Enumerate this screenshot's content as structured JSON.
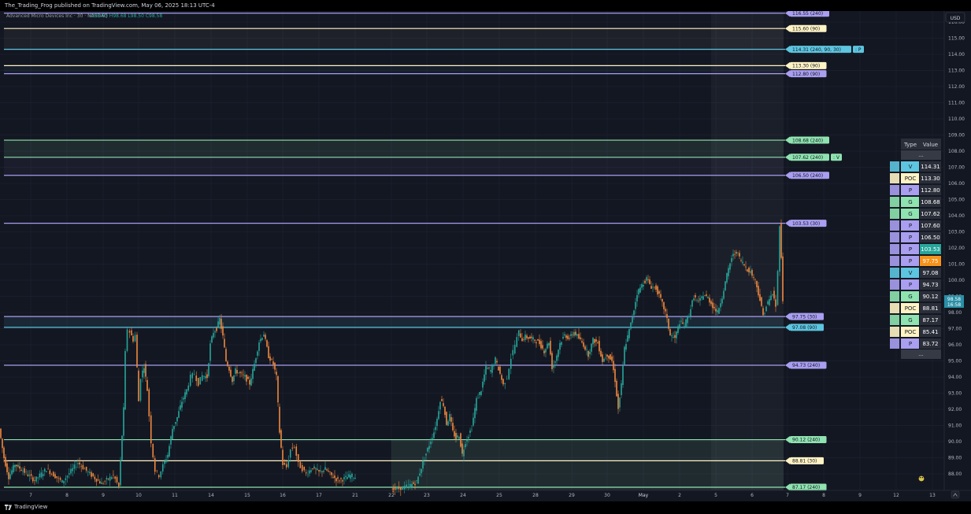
{
  "header": {
    "publish_text": "The_Trading_Frog published on TradingView.com, May 06, 2025 18:13 UTC-4",
    "symbol_line": "Advanced Micro Devices Inc · 30 · NASDAQ",
    "ohlc": "O98.65 H98.68 L98.50 C98.58"
  },
  "footer": {
    "brand": "TradingView"
  },
  "legend_table": {
    "header_type": "Type",
    "header_value": "Value",
    "ellipsis_top": "...",
    "ellipsis_bottom": "...",
    "rows": [
      {
        "type": "V",
        "value": "114.31",
        "color": "#5dc5e0"
      },
      {
        "type": "POC",
        "value": "113.30",
        "color": "#fff3c4"
      },
      {
        "type": "P",
        "value": "112.80",
        "color": "#a99ef0"
      },
      {
        "type": "G",
        "value": "108.68",
        "color": "#8fe3b0"
      },
      {
        "type": "G",
        "value": "107.62",
        "color": "#8fe3b0"
      },
      {
        "type": "P",
        "value": "107.60",
        "color": "#a99ef0"
      },
      {
        "type": "P",
        "value": "106.50",
        "color": "#a99ef0"
      },
      {
        "type": "P",
        "value": "103.53",
        "color": "#a99ef0",
        "value_bg": "#26a69a"
      },
      {
        "type": "P",
        "value": "97.75",
        "color": "#a99ef0",
        "value_bg": "#f7931a"
      },
      {
        "type": "V",
        "value": "97.08",
        "color": "#5dc5e0"
      },
      {
        "type": "P",
        "value": "94.73",
        "color": "#a99ef0"
      },
      {
        "type": "G",
        "value": "90.12",
        "color": "#8fe3b0"
      },
      {
        "type": "POC",
        "value": "88.81",
        "color": "#fff3c4"
      },
      {
        "type": "G",
        "value": "87.17",
        "color": "#8fe3b0"
      },
      {
        "type": "POC",
        "value": "85.41",
        "color": "#fff3c4"
      },
      {
        "type": "P",
        "value": "83.72",
        "color": "#a99ef0"
      }
    ]
  },
  "chart_data": {
    "type": "candlestick",
    "currency": "USD",
    "ylim": [
      87.0,
      116.6
    ],
    "y_ticks": [
      "88.00",
      "89.00",
      "90.00",
      "91.00",
      "92.00",
      "93.00",
      "94.00",
      "95.00",
      "96.00",
      "97.00",
      "98.00",
      "99.00",
      "100.00",
      "101.00",
      "102.00",
      "103.00",
      "104.00",
      "105.00",
      "106.00",
      "107.00",
      "108.00",
      "109.00",
      "110.00",
      "111.00",
      "112.00",
      "113.00",
      "114.00",
      "115.00",
      "116.00"
    ],
    "x_ticks": [
      "7",
      "8",
      "9",
      "10",
      "11",
      "14",
      "15",
      "16",
      "17",
      "21",
      "22",
      "23",
      "24",
      "25",
      "28",
      "29",
      "30",
      "May",
      "2",
      "5",
      "6",
      "7",
      "8",
      "9",
      "12",
      "13"
    ],
    "last_price": "98.58",
    "countdown": "16:58",
    "levels": [
      {
        "price": 116.55,
        "label": "116.55 (240)",
        "color": "#a99ef0"
      },
      {
        "price": 115.6,
        "label": "115.60 (90)",
        "color": "#fff3c4"
      },
      {
        "price": 114.31,
        "label": "114.31 (240, 90, 30)",
        "suffix": ": P",
        "color": "#5dc5e0"
      },
      {
        "price": 113.3,
        "label": "113.30 (90)",
        "color": "#fff3c4"
      },
      {
        "price": 112.8,
        "label": "112.80 (90)",
        "color": "#a99ef0"
      },
      {
        "price": 108.68,
        "label": "108.68 (240)",
        "color": "#8fe3b0"
      },
      {
        "price": 107.62,
        "label": "107.62 (240)",
        "suffix": ": V",
        "color": "#8fe3b0"
      },
      {
        "price": 106.5,
        "label": "106.50 (240)",
        "color": "#a99ef0"
      },
      {
        "price": 103.53,
        "label": "103.53 (30)",
        "color": "#a99ef0"
      },
      {
        "price": 97.75,
        "label": "97.75 (30)",
        "color": "#a99ef0"
      },
      {
        "price": 97.08,
        "label": "97.08 (90)",
        "color": "#5dc5e0"
      },
      {
        "price": 94.73,
        "label": "94.73 (240)",
        "color": "#a99ef0"
      },
      {
        "price": 90.12,
        "label": "90.12 (240)",
        "color": "#8fe3b0"
      },
      {
        "price": 88.81,
        "label": "88.81 (30)",
        "color": "#fff3c4"
      },
      {
        "price": 87.17,
        "label": "87.17 (240)",
        "color": "#8fe3b0"
      }
    ],
    "price_path": [
      [
        0,
        90.8
      ],
      [
        6,
        89.0
      ],
      [
        12,
        87.8
      ],
      [
        20,
        88.6
      ],
      [
        30,
        88.2
      ],
      [
        45,
        87.6
      ],
      [
        60,
        88.3
      ],
      [
        80,
        87.5
      ],
      [
        100,
        88.7
      ],
      [
        115,
        88.0
      ],
      [
        130,
        87.4
      ],
      [
        145,
        87.9
      ],
      [
        152,
        87.2
      ],
      [
        158,
        92.0
      ],
      [
        160,
        95.5
      ],
      [
        163,
        97.0
      ],
      [
        166,
        96.8
      ],
      [
        170,
        96.3
      ],
      [
        173,
        96.6
      ],
      [
        177,
        92.5
      ],
      [
        180,
        94.0
      ],
      [
        184,
        94.7
      ],
      [
        188,
        93.2
      ],
      [
        193,
        90.0
      ],
      [
        198,
        88.2
      ],
      [
        203,
        87.9
      ],
      [
        208,
        88.5
      ],
      [
        214,
        89.2
      ],
      [
        220,
        90.8
      ],
      [
        226,
        91.5
      ],
      [
        232,
        92.5
      ],
      [
        238,
        93.2
      ],
      [
        243,
        94.0
      ],
      [
        248,
        94.2
      ],
      [
        253,
        93.6
      ],
      [
        258,
        94.1
      ],
      [
        264,
        94.0
      ],
      [
        268,
        96.0
      ],
      [
        272,
        96.8
      ],
      [
        276,
        97.0
      ],
      [
        280,
        97.6
      ],
      [
        284,
        96.5
      ],
      [
        288,
        95.0
      ],
      [
        292,
        94.5
      ],
      [
        296,
        93.8
      ],
      [
        300,
        94.4
      ],
      [
        306,
        94.2
      ],
      [
        312,
        94.0
      ],
      [
        318,
        93.6
      ],
      [
        324,
        94.8
      ],
      [
        330,
        96.2
      ],
      [
        336,
        96.7
      ],
      [
        342,
        95.3
      ],
      [
        348,
        94.8
      ],
      [
        352,
        94.0
      ],
      [
        356,
        90.6
      ],
      [
        360,
        88.6
      ],
      [
        365,
        88.4
      ],
      [
        370,
        89.5
      ],
      [
        375,
        89.7
      ],
      [
        380,
        88.6
      ],
      [
        385,
        88.3
      ],
      [
        390,
        88.0
      ],
      [
        398,
        88.4
      ],
      [
        406,
        88.1
      ],
      [
        414,
        88.3
      ],
      [
        422,
        87.9
      ],
      [
        430,
        87.6
      ],
      [
        438,
        87.7
      ],
      [
        446,
        87.9
      ],
      [
        452,
        87.8
      ],
      [
        498,
        87.0
      ],
      [
        510,
        87.1
      ],
      [
        522,
        87.3
      ],
      [
        530,
        87.5
      ],
      [
        536,
        88.4
      ],
      [
        540,
        89.0
      ],
      [
        546,
        89.8
      ],
      [
        552,
        90.6
      ],
      [
        556,
        91.4
      ],
      [
        560,
        92.6
      ],
      [
        564,
        92.3
      ],
      [
        568,
        91.1
      ],
      [
        572,
        91.6
      ],
      [
        576,
        90.6
      ],
      [
        580,
        90.2
      ],
      [
        584,
        90.4
      ],
      [
        588,
        89.2
      ],
      [
        592,
        90.0
      ],
      [
        596,
        90.4
      ],
      [
        600,
        90.9
      ],
      [
        606,
        92.6
      ],
      [
        612,
        93.2
      ],
      [
        618,
        94.6
      ],
      [
        624,
        94.4
      ],
      [
        630,
        95.1
      ],
      [
        636,
        94.2
      ],
      [
        640,
        93.5
      ],
      [
        645,
        94.0
      ],
      [
        650,
        95.2
      ],
      [
        655,
        96.0
      ],
      [
        660,
        96.8
      ],
      [
        664,
        96.3
      ],
      [
        668,
        96.5
      ],
      [
        674,
        96.4
      ],
      [
        680,
        96.3
      ],
      [
        686,
        96.1
      ],
      [
        692,
        95.6
      ],
      [
        698,
        96.2
      ],
      [
        702,
        94.6
      ],
      [
        706,
        95.0
      ],
      [
        712,
        96.1
      ],
      [
        718,
        96.6
      ],
      [
        724,
        96.4
      ],
      [
        730,
        96.8
      ],
      [
        736,
        96.4
      ],
      [
        742,
        96.0
      ],
      [
        748,
        95.4
      ],
      [
        754,
        96.3
      ],
      [
        760,
        96.1
      ],
      [
        766,
        95.0
      ],
      [
        772,
        95.4
      ],
      [
        778,
        95.0
      ],
      [
        782,
        93.8
      ],
      [
        786,
        92.0
      ],
      [
        790,
        93.5
      ],
      [
        794,
        95.8
      ],
      [
        798,
        96.5
      ],
      [
        802,
        97.3
      ],
      [
        806,
        98.2
      ],
      [
        810,
        99.2
      ],
      [
        816,
        99.7
      ],
      [
        822,
        100.1
      ],
      [
        828,
        99.6
      ],
      [
        834,
        99.5
      ],
      [
        840,
        98.8
      ],
      [
        846,
        98.0
      ],
      [
        852,
        96.6
      ],
      [
        858,
        96.4
      ],
      [
        864,
        97.4
      ],
      [
        870,
        97.2
      ],
      [
        876,
        97.9
      ],
      [
        882,
        99.0
      ],
      [
        888,
        98.6
      ],
      [
        894,
        99.1
      ],
      [
        900,
        98.9
      ],
      [
        906,
        98.4
      ],
      [
        912,
        98.0
      ],
      [
        918,
        99.0
      ],
      [
        924,
        100.3
      ],
      [
        930,
        101.4
      ],
      [
        936,
        101.8
      ],
      [
        942,
        101.2
      ],
      [
        948,
        100.8
      ],
      [
        954,
        100.5
      ],
      [
        960,
        100.0
      ],
      [
        966,
        98.8
      ],
      [
        970,
        97.8
      ],
      [
        974,
        98.4
      ],
      [
        978,
        98.8
      ],
      [
        982,
        99.2
      ],
      [
        986,
        98.4
      ],
      [
        989,
        100.5
      ],
      [
        991,
        103.5
      ],
      [
        993,
        101.5
      ],
      [
        995,
        98.6
      ]
    ]
  }
}
